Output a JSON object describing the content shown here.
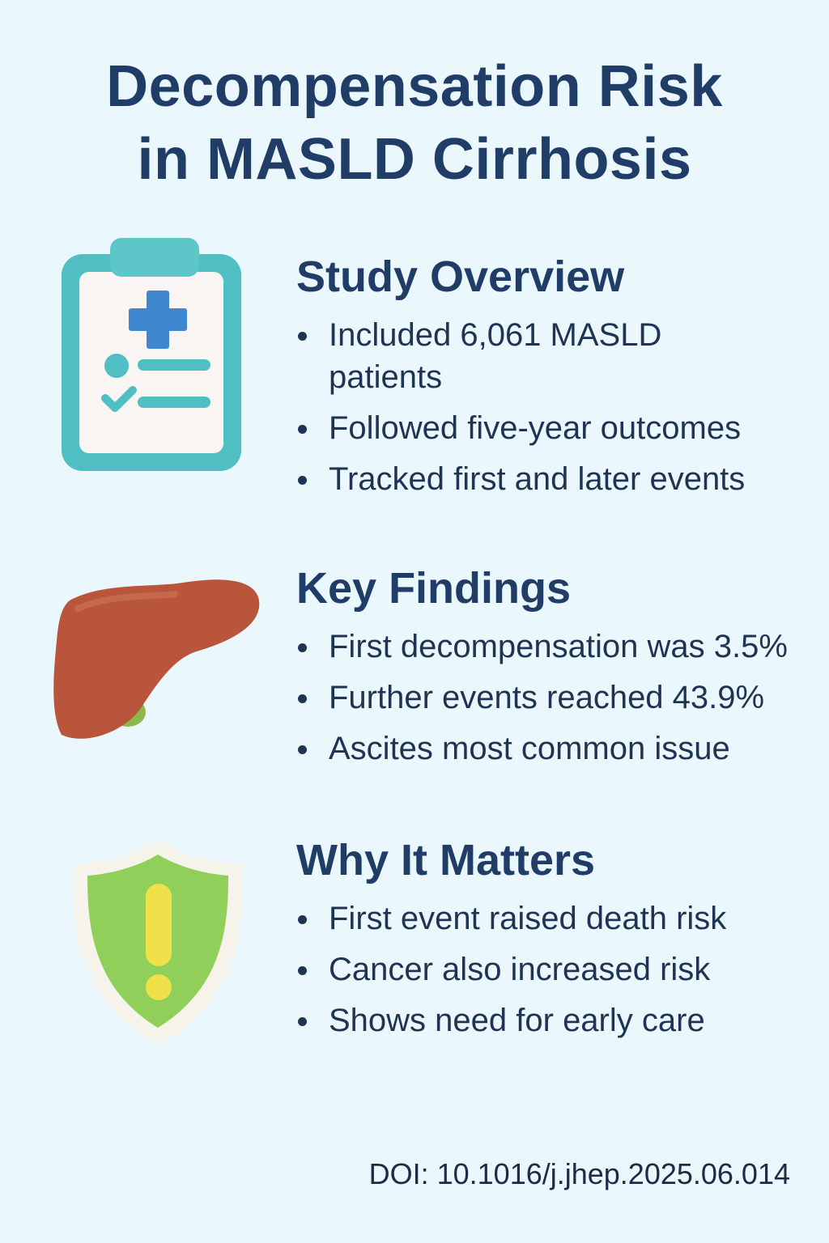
{
  "title": {
    "line1": "Decompensation Risk",
    "line2": "in MASLD Cirrhosis"
  },
  "sections": [
    {
      "icon": "clipboard-medical-icon",
      "heading": "Study Overview",
      "bullets": [
        "Included 6,061 MASLD patients",
        "Followed five-year outcomes",
        "Tracked first and later events"
      ]
    },
    {
      "icon": "liver-icon",
      "heading": "Key Findings",
      "bullets": [
        "First decompensation was 3.5%",
        "Further events reached 43.9%",
        "Ascites most common issue"
      ]
    },
    {
      "icon": "warning-shield-icon",
      "heading": "Why It Matters",
      "bullets": [
        "First event raised death risk",
        "Cancer also increased risk",
        "Shows need for early care"
      ]
    }
  ],
  "doi": "DOI: 10.1016/j.jhep.2025.06.014",
  "colors": {
    "background": "#eaf7fd",
    "heading": "#1f3d66",
    "teal": "#4fc0c4",
    "liver": "#b8553a",
    "shield": "#8fcf5a"
  }
}
